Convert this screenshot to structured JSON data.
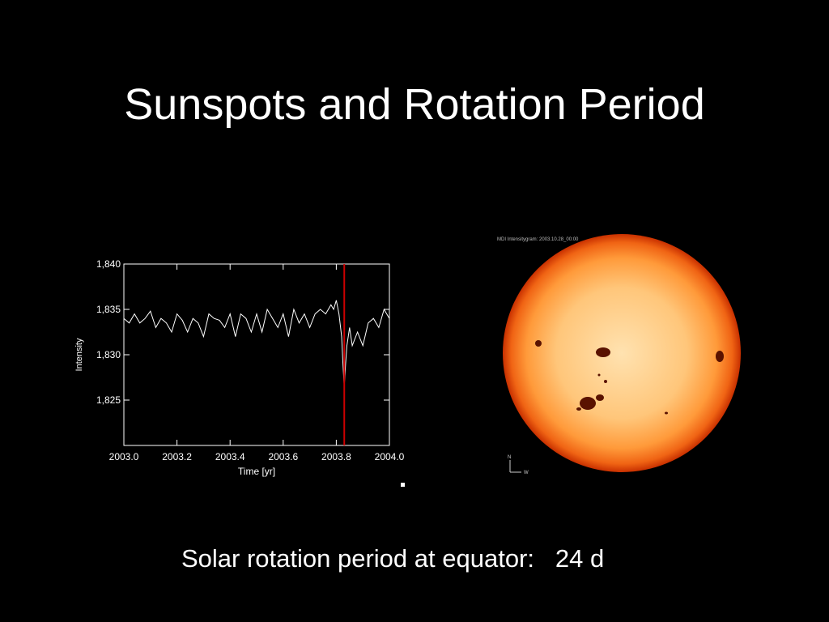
{
  "slide": {
    "title": "Sunspots and Rotation Period",
    "caption_label": "Solar rotation period at equator:",
    "caption_value": "24 d"
  },
  "colors": {
    "background": "#000000",
    "marker_line": "#cc0000",
    "sun_center": "#ffd9a0",
    "sun_edge": "#d43a00"
  },
  "chart_data": {
    "type": "line",
    "xlabel": "Time [yr]",
    "ylabel": "Intensity",
    "xlim": [
      2003.0,
      2004.0
    ],
    "ylim": [
      1820,
      1840
    ],
    "xticks": [
      "2003.0",
      "2003.2",
      "2003.4",
      "2003.6",
      "2003.8",
      "2004.0"
    ],
    "yticks": [
      "1,840",
      "1,835",
      "1,830",
      "1,825"
    ],
    "ytick_values": [
      1840,
      1835,
      1830,
      1825
    ],
    "marker_x": 2003.83,
    "series": [
      {
        "x": [
          2003.0,
          2003.02,
          2003.04,
          2003.06,
          2003.08,
          2003.1,
          2003.12,
          2003.14,
          2003.16,
          2003.18,
          2003.2,
          2003.22,
          2003.24,
          2003.26,
          2003.28,
          2003.3,
          2003.32,
          2003.34,
          2003.36,
          2003.38,
          2003.4,
          2003.42,
          2003.44,
          2003.46,
          2003.48,
          2003.5,
          2003.52,
          2003.54,
          2003.56,
          2003.58,
          2003.6,
          2003.62,
          2003.64,
          2003.66,
          2003.68,
          2003.7,
          2003.72,
          2003.74,
          2003.76,
          2003.78,
          2003.79,
          2003.8,
          2003.81,
          2003.82,
          2003.825,
          2003.83,
          2003.835,
          2003.84,
          2003.85,
          2003.86,
          2003.88,
          2003.9,
          2003.92,
          2003.94,
          2003.96,
          2003.98,
          2004.0
        ],
        "y": [
          1834.0,
          1833.5,
          1834.5,
          1833.5,
          1834.0,
          1834.8,
          1833.0,
          1834.0,
          1833.5,
          1832.5,
          1834.5,
          1833.8,
          1832.5,
          1834.0,
          1833.5,
          1832.0,
          1834.5,
          1834.0,
          1833.8,
          1833.0,
          1834.5,
          1832.0,
          1834.5,
          1834.0,
          1832.5,
          1834.5,
          1832.5,
          1835.0,
          1834.0,
          1833.0,
          1834.5,
          1832.0,
          1835.0,
          1833.5,
          1834.5,
          1833.0,
          1834.5,
          1835.0,
          1834.5,
          1835.5,
          1835.0,
          1836.0,
          1834.5,
          1832.0,
          1829.0,
          1826.5,
          1829.0,
          1831.0,
          1833.0,
          1831.0,
          1832.5,
          1831.0,
          1833.5,
          1834.0,
          1833.0,
          1835.0,
          1834.0
        ]
      }
    ]
  },
  "sun_image": {
    "header_label": "MDI Intensitygram: 2003.10.28_00:00",
    "compass_n": "N",
    "compass_w": "W"
  }
}
